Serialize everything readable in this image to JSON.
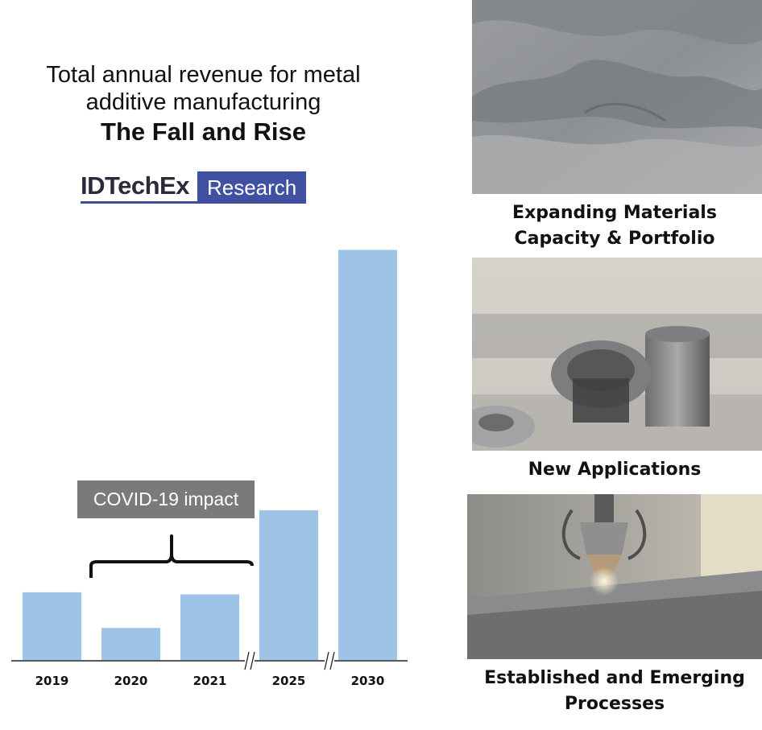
{
  "header": {
    "title_line1": "Total annual revenue for metal",
    "title_line2": "additive manufacturing",
    "title_bold": "The Fall and Rise"
  },
  "logo": {
    "main": "IDTechEx",
    "box": "Research"
  },
  "annotation": {
    "covid_label": "COVID-19 impact"
  },
  "chart_data": {
    "type": "bar",
    "categories": [
      "2019",
      "2020",
      "2021",
      "2025",
      "2030"
    ],
    "values": [
      16.5,
      7.8,
      16,
      36.5,
      100
    ],
    "ylim": [
      0,
      105
    ],
    "axis_breaks_after": [
      "2021",
      "2025"
    ],
    "bar_color": "#9dc3e6",
    "grid": false
  },
  "panels": [
    {
      "icon": "metal-powder-photo",
      "caption_lines": [
        "Expanding Materials",
        "Capacity & Portfolio"
      ]
    },
    {
      "icon": "printed-metal-parts-photo",
      "caption_lines": [
        "New Applications"
      ]
    },
    {
      "icon": "laser-deposition-nozzle-photo",
      "caption_lines": [
        "Established and Emerging",
        "Processes"
      ]
    }
  ]
}
